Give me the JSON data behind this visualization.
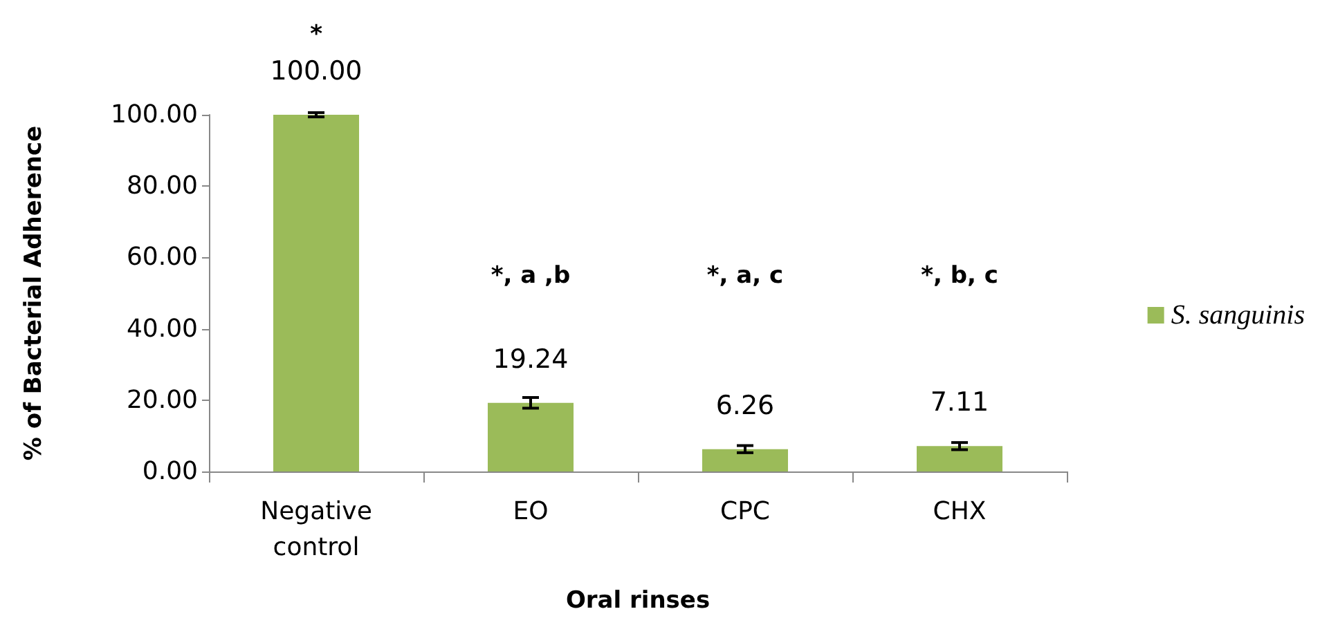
{
  "chart_data": {
    "type": "bar",
    "xlabel": "Oral rinses",
    "ylabel": "% of Bacterial Adherence",
    "categories": [
      "Negative control",
      "EO",
      "CPC",
      "CHX"
    ],
    "series": [
      {
        "name": "S. sanguinis",
        "color": "#9bbb59",
        "values": [
          100.0,
          19.24,
          6.26,
          7.11
        ],
        "value_labels": [
          "100.00",
          "19.24",
          "6.26",
          "7.11"
        ],
        "errors": [
          0.6,
          1.5,
          1.0,
          1.0
        ]
      }
    ],
    "ylim": [
      0,
      100
    ],
    "yticks": [
      {
        "value": 0,
        "label": "0.00"
      },
      {
        "value": 20,
        "label": "20.00"
      },
      {
        "value": 40,
        "label": "40.00"
      },
      {
        "value": 60,
        "label": "60.00"
      },
      {
        "value": 80,
        "label": "80.00"
      },
      {
        "value": 100,
        "label": "100.00"
      }
    ],
    "grid": false,
    "legend": "right",
    "annotations": [
      "*",
      "*, a ,b",
      "*, a, c",
      "*, b, c"
    ]
  }
}
